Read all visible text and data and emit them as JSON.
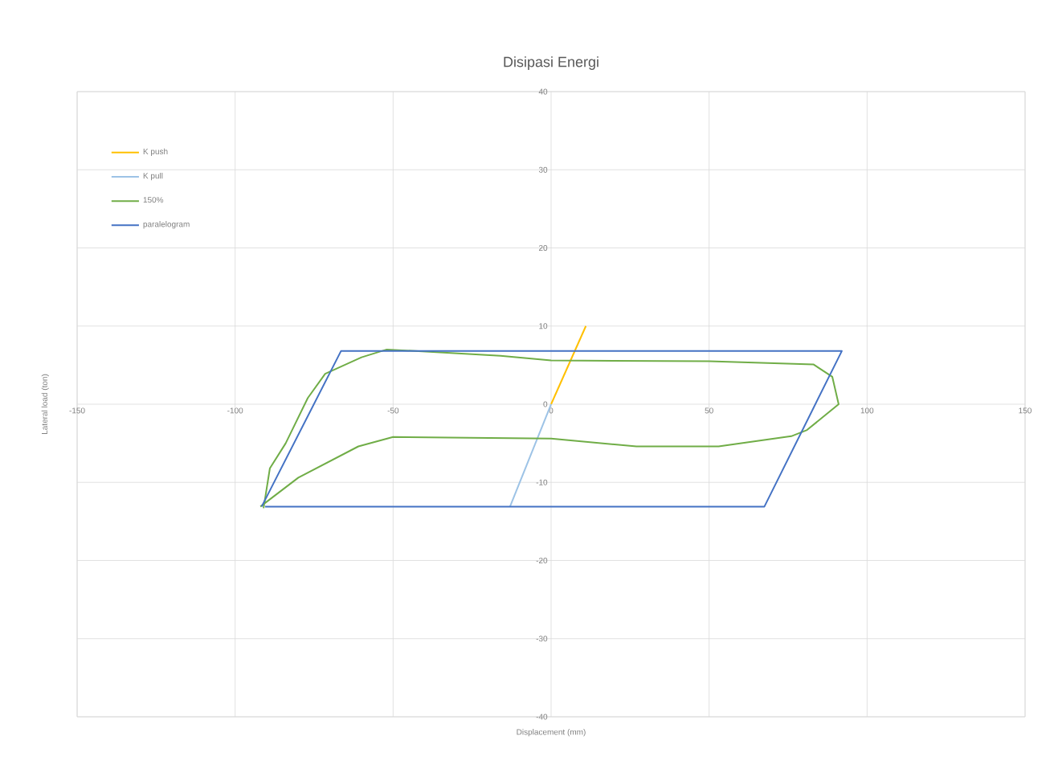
{
  "chart_data": {
    "type": "line",
    "title": "Disipasi Energi",
    "xlabel": "Displacement (mm)",
    "ylabel": "Lateral load (ton)",
    "xlim": [
      -150,
      150
    ],
    "xticks": [
      -150,
      -100,
      -50,
      0,
      50,
      100,
      150
    ],
    "ylim": [
      -40,
      40
    ],
    "yticks": [
      -40,
      -30,
      -20,
      -10,
      0,
      10,
      20,
      30,
      40
    ],
    "grid": true,
    "legend": "top left",
    "series": [
      {
        "name": "K push",
        "color": "#ffc000",
        "x": [
          0,
          11
        ],
        "values": [
          0,
          10
        ]
      },
      {
        "name": "K pull",
        "color": "#9dc3e6",
        "x": [
          0,
          -13
        ],
        "values": [
          0,
          -13.1
        ]
      },
      {
        "name": "150%",
        "color": "#70ad47",
        "x": [
          -91,
          -89,
          -84,
          -77,
          -71.5,
          -60,
          -52,
          -16,
          0,
          50,
          83,
          89,
          91,
          81,
          76,
          53,
          27,
          0,
          -50,
          -61,
          -80,
          -92
        ],
        "values": [
          -13.3,
          -8.2,
          -5,
          0.8,
          3.9,
          6,
          7,
          6.2,
          5.6,
          5.5,
          5.1,
          3.5,
          0,
          -3.3,
          -4.1,
          -5.4,
          -5.4,
          -4.4,
          -4.2,
          -5.4,
          -9.4,
          -13.1
        ]
      },
      {
        "name": "paralelogram",
        "color": "#4472c4",
        "x": [
          -91.6,
          -66.5,
          92,
          67.5,
          -90.5
        ],
        "values": [
          -13.1,
          6.8,
          6.8,
          -13.1,
          -13.1
        ]
      }
    ]
  }
}
